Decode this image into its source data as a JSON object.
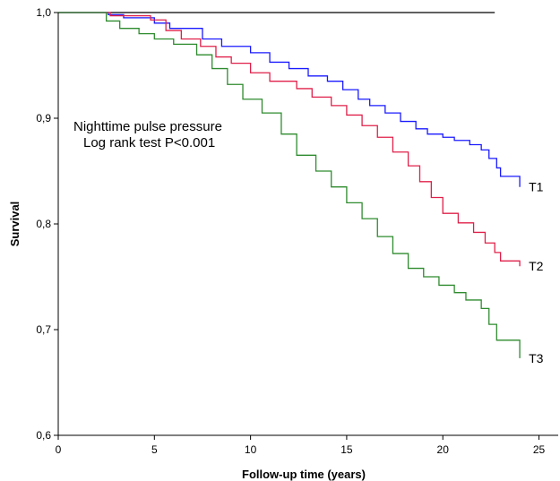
{
  "chart_data": {
    "type": "line",
    "step": true,
    "xlabel": "Follow-up time (years)",
    "ylabel": "Survival",
    "xlim": [
      0,
      26
    ],
    "ylim": [
      0.6,
      1.0
    ],
    "xticks": [
      0,
      5,
      10,
      15,
      20,
      25
    ],
    "xtick_labels": [
      "0",
      "5",
      "10",
      "15",
      "20",
      "25"
    ],
    "yticks": [
      0.6,
      0.7,
      0.8,
      0.9,
      1.0
    ],
    "ytick_labels": [
      "0,6",
      "0,7",
      "0,8",
      "0,9",
      "1,0"
    ],
    "grid": false,
    "annotations": [
      "Nighttime pulse pressure",
      "Log rank test P<0.001"
    ],
    "reference_line": {
      "y": 1.0,
      "x_start": 0,
      "x_end": 22.7
    },
    "series": [
      {
        "name": "T1",
        "color": "#1a1aff",
        "x": [
          0,
          2.6,
          3.4,
          5.0,
          5.8,
          7.5,
          8.5,
          10.0,
          11.0,
          12.0,
          13.0,
          14.0,
          14.8,
          15.6,
          16.2,
          17.0,
          17.8,
          18.6,
          19.2,
          20.0,
          20.6,
          21.4,
          22.0,
          22.4,
          22.8,
          23.0,
          24.0
        ],
        "y": [
          1.0,
          0.998,
          0.995,
          0.99,
          0.985,
          0.975,
          0.968,
          0.962,
          0.953,
          0.947,
          0.94,
          0.935,
          0.927,
          0.918,
          0.912,
          0.905,
          0.897,
          0.89,
          0.885,
          0.882,
          0.879,
          0.875,
          0.87,
          0.862,
          0.853,
          0.845,
          0.835
        ]
      },
      {
        "name": "T2",
        "color": "#e0204a",
        "x": [
          0,
          2.7,
          4.8,
          5.6,
          6.4,
          7.4,
          8.2,
          9.0,
          10.0,
          11.0,
          12.4,
          13.2,
          14.2,
          15.0,
          15.8,
          16.6,
          17.4,
          18.2,
          18.8,
          19.4,
          20.0,
          20.8,
          21.6,
          22.2,
          22.7,
          23.0,
          24.0
        ],
        "y": [
          1.0,
          0.997,
          0.993,
          0.983,
          0.975,
          0.968,
          0.958,
          0.952,
          0.943,
          0.935,
          0.928,
          0.92,
          0.912,
          0.903,
          0.893,
          0.882,
          0.868,
          0.855,
          0.84,
          0.825,
          0.81,
          0.801,
          0.792,
          0.782,
          0.773,
          0.765,
          0.76
        ]
      },
      {
        "name": "T3",
        "color": "#2e8b2e",
        "x": [
          0,
          2.5,
          3.2,
          4.2,
          5.0,
          6.0,
          7.2,
          8.0,
          8.8,
          9.6,
          10.6,
          11.6,
          12.4,
          13.4,
          14.2,
          15.0,
          15.8,
          16.6,
          17.4,
          18.2,
          19.0,
          19.8,
          20.6,
          21.2,
          22.0,
          22.4,
          22.8,
          24.0
        ],
        "y": [
          1.0,
          0.992,
          0.985,
          0.98,
          0.975,
          0.97,
          0.96,
          0.947,
          0.932,
          0.918,
          0.905,
          0.885,
          0.865,
          0.85,
          0.835,
          0.82,
          0.805,
          0.788,
          0.772,
          0.758,
          0.75,
          0.742,
          0.735,
          0.728,
          0.72,
          0.705,
          0.69,
          0.673
        ]
      }
    ]
  }
}
